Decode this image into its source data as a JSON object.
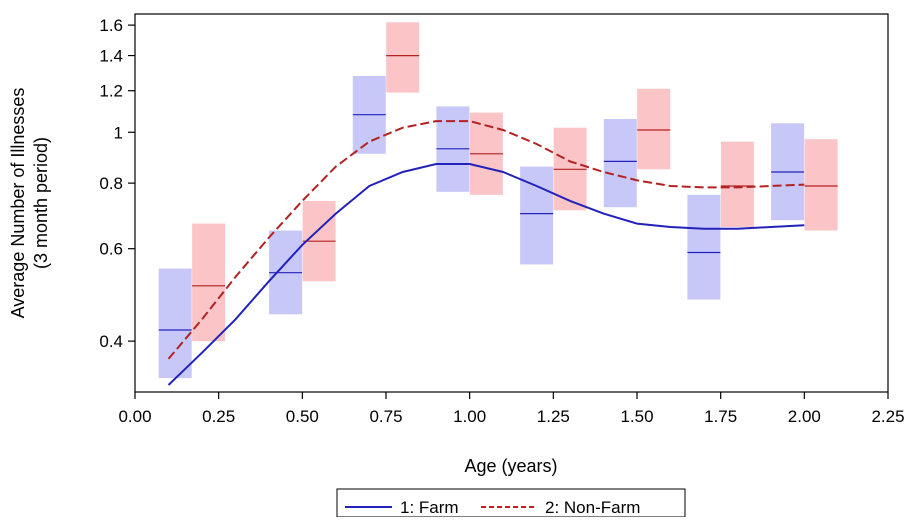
{
  "chart_data": {
    "type": "line",
    "xlabel": "Age (years)",
    "ylabel_lines": [
      "Average Number of Illnesses",
      "(3 month period)"
    ],
    "xlim": [
      0,
      2.25
    ],
    "ylim": [
      0.32,
      1.68
    ],
    "y_scale": "log",
    "x_ticks": [
      0,
      0.25,
      0.5,
      0.75,
      1.0,
      1.25,
      1.5,
      1.75,
      2.0,
      2.25
    ],
    "x_tick_labels": [
      "0.00",
      "0.25",
      "0.50",
      "0.75",
      "1.00",
      "1.25",
      "1.50",
      "1.75",
      "2.00",
      "2.25"
    ],
    "y_ticks": [
      0.4,
      0.6,
      0.8,
      1,
      1.2,
      1.4,
      1.6
    ],
    "y_tick_labels": [
      "0.4",
      "0.6",
      "0.8",
      "1",
      "1.2",
      "1.4",
      "1.6"
    ],
    "grid": false,
    "legend_position": "bottom",
    "series": [
      {
        "name": "1: Farm",
        "color": "#2222bb",
        "box_color": "#c8c8f8",
        "line_style": "solid",
        "curve": {
          "x": [
            0.1,
            0.2,
            0.3,
            0.4,
            0.5,
            0.6,
            0.7,
            0.8,
            0.9,
            1.0,
            1.1,
            1.2,
            1.3,
            1.4,
            1.5,
            1.6,
            1.7,
            1.8,
            1.9,
            2.0
          ],
          "y": [
            0.33,
            0.38,
            0.44,
            0.52,
            0.61,
            0.7,
            0.79,
            0.84,
            0.87,
            0.87,
            0.84,
            0.79,
            0.74,
            0.7,
            0.67,
            0.66,
            0.655,
            0.655,
            0.66,
            0.665
          ]
        },
        "intervals": [
          {
            "x": 0.12,
            "mean": 0.42,
            "low": 0.34,
            "high": 0.55
          },
          {
            "x": 0.45,
            "mean": 0.54,
            "low": 0.45,
            "high": 0.65
          },
          {
            "x": 0.7,
            "mean": 1.08,
            "low": 0.91,
            "high": 1.28
          },
          {
            "x": 0.95,
            "mean": 0.93,
            "low": 0.77,
            "high": 1.12
          },
          {
            "x": 1.2,
            "mean": 0.7,
            "low": 0.56,
            "high": 0.86
          },
          {
            "x": 1.45,
            "mean": 0.88,
            "low": 0.72,
            "high": 1.06
          },
          {
            "x": 1.7,
            "mean": 0.59,
            "low": 0.48,
            "high": 0.76
          },
          {
            "x": 1.95,
            "mean": 0.84,
            "low": 0.68,
            "high": 1.04
          }
        ]
      },
      {
        "name": "2: Non-Farm",
        "color": "#b22222",
        "box_color": "#fbc4c6",
        "line_style": "dashed",
        "curve": {
          "x": [
            0.1,
            0.2,
            0.3,
            0.4,
            0.5,
            0.6,
            0.7,
            0.8,
            0.9,
            1.0,
            1.1,
            1.2,
            1.3,
            1.4,
            1.5,
            1.6,
            1.7,
            1.8,
            1.9,
            2.0
          ],
          "y": [
            0.37,
            0.44,
            0.53,
            0.63,
            0.74,
            0.86,
            0.96,
            1.02,
            1.05,
            1.05,
            1.01,
            0.95,
            0.88,
            0.84,
            0.81,
            0.79,
            0.785,
            0.785,
            0.79,
            0.795
          ]
        },
        "intervals": [
          {
            "x": 0.22,
            "mean": 0.51,
            "low": 0.4,
            "high": 0.67
          },
          {
            "x": 0.55,
            "mean": 0.62,
            "low": 0.52,
            "high": 0.74
          },
          {
            "x": 0.8,
            "mean": 1.4,
            "low": 1.19,
            "high": 1.62
          },
          {
            "x": 1.05,
            "mean": 0.91,
            "low": 0.76,
            "high": 1.09
          },
          {
            "x": 1.3,
            "mean": 0.85,
            "low": 0.71,
            "high": 1.02
          },
          {
            "x": 1.55,
            "mean": 1.01,
            "low": 0.85,
            "high": 1.21
          },
          {
            "x": 1.8,
            "mean": 0.79,
            "low": 0.66,
            "high": 0.96
          },
          {
            "x": 2.05,
            "mean": 0.79,
            "low": 0.65,
            "high": 0.97
          }
        ]
      }
    ]
  }
}
